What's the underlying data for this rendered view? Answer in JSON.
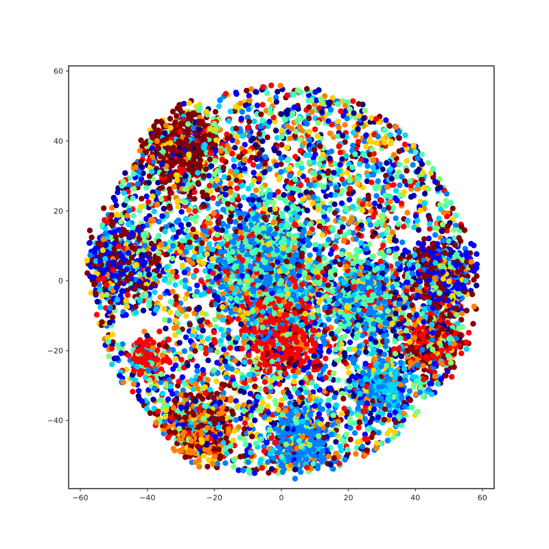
{
  "chart_data": {
    "type": "scatter",
    "title": "",
    "xlabel": "",
    "ylabel": "",
    "xlim": [
      -63.5,
      63.5
    ],
    "ylim": [
      -59.5,
      61.5
    ],
    "x_ticks": [
      -60,
      -40,
      -20,
      0,
      20,
      40,
      60
    ],
    "y_ticks": [
      -40,
      -20,
      0,
      20,
      40,
      60
    ],
    "x_tick_labels": [
      "−60",
      "−40",
      "−20",
      "0",
      "20",
      "40",
      "60"
    ],
    "y_tick_labels": [
      "−40",
      "−20",
      "0",
      "20",
      "40",
      "60"
    ],
    "grid": false,
    "legend": "none",
    "colormap": [
      "#00008b",
      "#0000ff",
      "#0080ff",
      "#00d4ff",
      "#4dffb3",
      "#80ff80",
      "#ffd400",
      "#ff8000",
      "#ff0000",
      "#800000"
    ],
    "overall_extent": {
      "center": [
        0,
        0
      ],
      "radius": 56
    },
    "clusters": [
      {
        "center": [
          -48,
          5
        ],
        "radius": 9,
        "dominant_colors": [
          "#800000",
          "#0000ff"
        ]
      },
      {
        "center": [
          -40,
          -22
        ],
        "radius": 5,
        "dominant_colors": [
          "#ff0000"
        ]
      },
      {
        "center": [
          -25,
          -42
        ],
        "radius": 9,
        "dominant_colors": [
          "#800000",
          "#ff8000"
        ]
      },
      {
        "center": [
          5,
          -45
        ],
        "radius": 8,
        "dominant_colors": [
          "#0080ff"
        ]
      },
      {
        "center": [
          25,
          -5
        ],
        "radius": 10,
        "dominant_colors": [
          "#4dffb3",
          "#0080ff"
        ]
      },
      {
        "center": [
          48,
          3
        ],
        "radius": 9,
        "dominant_colors": [
          "#0000ff",
          "#800000"
        ]
      },
      {
        "center": [
          45,
          -18
        ],
        "radius": 8,
        "dominant_colors": [
          "#ff0000",
          "#800000"
        ]
      },
      {
        "center": [
          30,
          -30
        ],
        "radius": 7,
        "dominant_colors": [
          "#0080ff",
          "#00d4ff"
        ]
      },
      {
        "center": [
          -5,
          5
        ],
        "radius": 14,
        "dominant_colors": [
          "#0080ff",
          "#4dffb3"
        ]
      },
      {
        "center": [
          -30,
          38
        ],
        "radius": 10,
        "dominant_colors": [
          "#800000"
        ]
      },
      {
        "center": [
          0,
          -15
        ],
        "radius": 10,
        "dominant_colors": [
          "#ff0000"
        ]
      }
    ]
  }
}
